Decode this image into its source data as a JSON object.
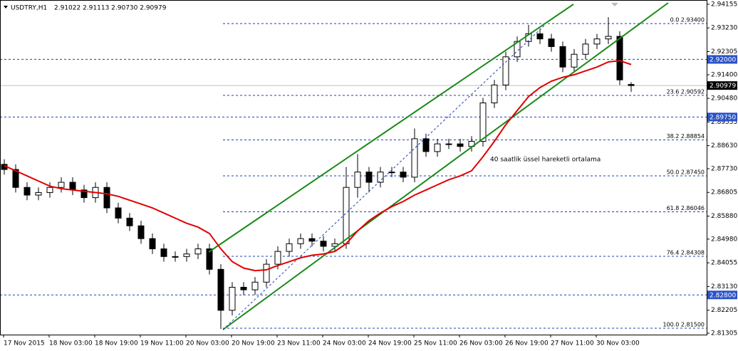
{
  "chart_data": {
    "type": "candlestick",
    "title": "USDTRY,H1",
    "subtitle": "2.91022 2.91113 2.90730 2.90979",
    "annotation": "40 saatlik üssel hareketli ortalama",
    "ylim": [
      2.8125,
      2.9432
    ],
    "yticks": [
      {
        "value": 2.94155,
        "label": "2.94155"
      },
      {
        "value": 2.9323,
        "label": "2.93230"
      },
      {
        "value": 2.92305,
        "label": "2.92305"
      },
      {
        "value": 2.914,
        "label": "2.91400"
      },
      {
        "value": 2.9048,
        "label": "2.90480"
      },
      {
        "value": 2.89555,
        "label": "2.89555"
      },
      {
        "value": 2.8863,
        "label": "2.88630"
      },
      {
        "value": 2.8773,
        "label": "2.87730"
      },
      {
        "value": 2.86805,
        "label": "2.86805"
      },
      {
        "value": 2.8588,
        "label": "2.85880"
      },
      {
        "value": 2.8498,
        "label": "2.84980"
      },
      {
        "value": 2.84055,
        "label": "2.84055"
      },
      {
        "value": 2.8313,
        "label": "2.83130"
      },
      {
        "value": 2.82205,
        "label": "2.82205"
      },
      {
        "value": 2.81305,
        "label": "2.81305"
      }
    ],
    "x_labels": [
      "17 Nov 2015",
      "18 Nov 03:00",
      "18 Nov 19:00",
      "19 Nov 11:00",
      "20 Nov 03:00",
      "20 Nov 19:00",
      "23 Nov 11:00",
      "24 Nov 03:00",
      "24 Nov 19:00",
      "25 Nov 11:00",
      "26 Nov 03:00",
      "26 Nov 19:00",
      "27 Nov 11:00",
      "30 Nov 03:00"
    ],
    "open": [
      2.879,
      2.877,
      2.87,
      2.867,
      2.868,
      2.87,
      2.872,
      2.869,
      2.866,
      2.87,
      2.862,
      2.858,
      2.855,
      2.85,
      2.846,
      2.843,
      2.843,
      2.844,
      2.846,
      2.838,
      2.822,
      2.831,
      2.83,
      2.833,
      2.84,
      2.845,
      2.848,
      2.85,
      2.849,
      2.847,
      2.848,
      2.87,
      2.876,
      2.872,
      2.876,
      2.876,
      2.874,
      2.889,
      2.884,
      2.887,
      2.887,
      2.886,
      2.888,
      2.903,
      2.91,
      2.921,
      2.927,
      2.93,
      2.928,
      2.925,
      2.917,
      2.922,
      2.926,
      2.928,
      2.929,
      2.91022
    ],
    "high": [
      2.881,
      2.879,
      2.872,
      2.87,
      2.872,
      2.874,
      2.874,
      2.871,
      2.872,
      2.872,
      2.864,
      2.86,
      2.857,
      2.852,
      2.848,
      2.845,
      2.846,
      2.848,
      2.848,
      2.84,
      2.833,
      2.833,
      2.835,
      2.842,
      2.847,
      2.85,
      2.852,
      2.852,
      2.851,
      2.85,
      2.878,
      2.883,
      2.878,
      2.878,
      2.878,
      2.878,
      2.893,
      2.891,
      2.889,
      2.889,
      2.889,
      2.89,
      2.905,
      2.912,
      2.923,
      2.929,
      2.9335,
      2.932,
      2.93,
      2.927,
      2.924,
      2.928,
      2.93,
      2.9365,
      2.931,
      2.91113
    ],
    "low": [
      2.875,
      2.868,
      2.865,
      2.865,
      2.866,
      2.868,
      2.867,
      2.864,
      2.864,
      2.86,
      2.856,
      2.853,
      2.848,
      2.844,
      2.841,
      2.841,
      2.841,
      2.842,
      2.836,
      2.8147,
      2.82,
      2.828,
      2.828,
      2.831,
      2.838,
      2.843,
      2.846,
      2.847,
      2.845,
      2.845,
      2.846,
      2.866,
      2.868,
      2.87,
      2.874,
      2.872,
      2.872,
      2.882,
      2.882,
      2.885,
      2.884,
      2.884,
      2.886,
      2.901,
      2.908,
      2.919,
      2.925,
      2.926,
      2.923,
      2.915,
      2.915,
      2.92,
      2.924,
      2.926,
      2.91,
      2.9073
    ],
    "close": [
      2.877,
      2.87,
      2.867,
      2.868,
      2.87,
      2.872,
      2.869,
      2.866,
      2.87,
      2.862,
      2.858,
      2.855,
      2.85,
      2.846,
      2.843,
      2.843,
      2.844,
      2.846,
      2.838,
      2.822,
      2.831,
      2.83,
      2.833,
      2.84,
      2.845,
      2.848,
      2.85,
      2.849,
      2.847,
      2.848,
      2.87,
      2.876,
      2.872,
      2.876,
      2.876,
      2.874,
      2.889,
      2.884,
      2.887,
      2.887,
      2.886,
      2.888,
      2.903,
      2.91,
      2.921,
      2.927,
      2.93,
      2.928,
      2.925,
      2.917,
      2.922,
      2.926,
      2.928,
      2.929,
      2.912,
      2.90979
    ],
    "up_color": "#ffffff",
    "down_color": "#000000",
    "ema": {
      "color": "#e00000",
      "values": [
        2.8785,
        2.8765,
        2.8745,
        2.8725,
        2.8705,
        2.8695,
        2.869,
        2.8685,
        2.868,
        2.8675,
        2.8665,
        2.865,
        2.8635,
        2.862,
        2.86,
        2.858,
        2.856,
        2.8545,
        2.852,
        2.846,
        2.841,
        2.8385,
        2.8375,
        2.8378,
        2.8395,
        2.841,
        2.8425,
        2.8435,
        2.844,
        2.845,
        2.848,
        2.853,
        2.857,
        2.86,
        2.8625,
        2.8645,
        2.867,
        2.869,
        2.871,
        2.873,
        2.8745,
        2.8765,
        2.882,
        2.888,
        2.8945,
        2.9,
        2.9055,
        2.909,
        2.9115,
        2.913,
        2.914,
        2.9155,
        2.917,
        2.919,
        2.9195,
        2.918
      ]
    },
    "fib_levels": [
      {
        "value": 2.934,
        "label": "0.0 2.93400"
      },
      {
        "value": 2.90592,
        "label": "23.6 2.90592"
      },
      {
        "value": 2.88854,
        "label": "38.2 2.88854"
      },
      {
        "value": 2.8745,
        "label": "50.0 2.87450"
      },
      {
        "value": 2.86046,
        "label": "61.8 2.86046"
      },
      {
        "value": 2.84308,
        "label": "76.4 2.84308"
      },
      {
        "value": 2.815,
        "label": "100.0 2.81500"
      }
    ],
    "levels": [
      {
        "value": 2.92,
        "label": "2.92000"
      },
      {
        "value": 2.8975,
        "label": "2.89750"
      },
      {
        "value": 2.828,
        "label": "2.82800"
      }
    ],
    "last_price": {
      "value": 2.90979,
      "label": "2.90979"
    }
  }
}
